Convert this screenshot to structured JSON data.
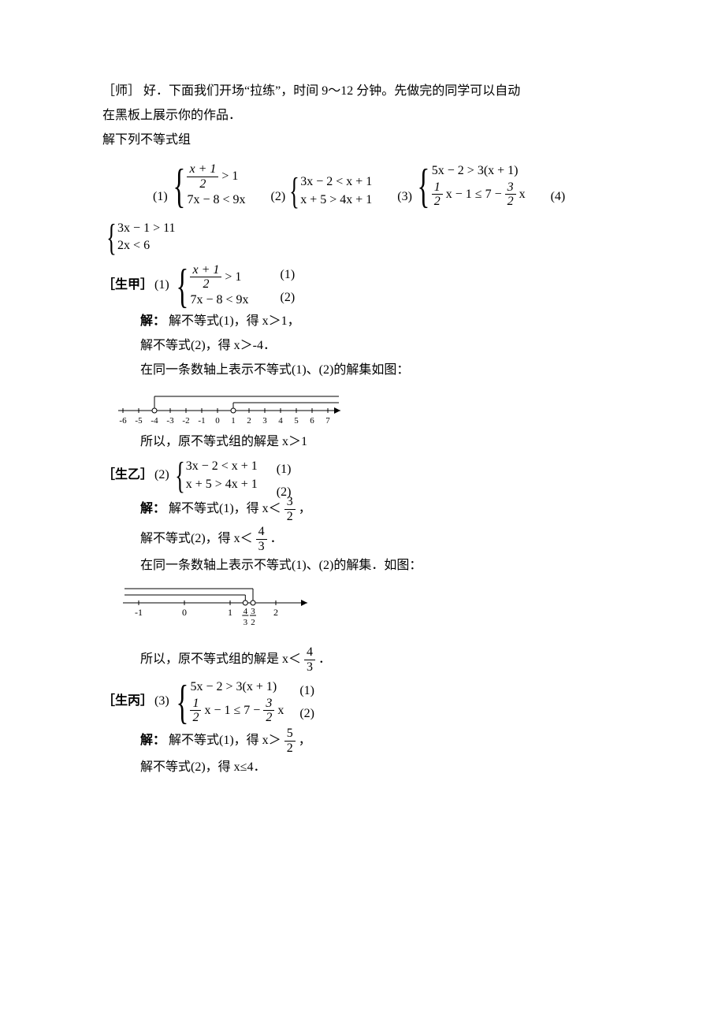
{
  "intro": {
    "teacher_label": "［师］",
    "line1a": "好．下面我们开场“拉练”，时间 9～12 分钟。先做完的同学可以自动",
    "line1b": "在黑板上展示你的作品．",
    "prompt": "解下列不等式组"
  },
  "problems": {
    "p1_label": "(1)",
    "p1_line1_lhs": "x + 1",
    "p1_line1_den": "2",
    "p1_line1_rest": "> 1",
    "p1_line2": "7x − 8 < 9x",
    "p2_label": "(2)",
    "p2_line1": "3x − 2 < x + 1",
    "p2_line2": "x + 5 > 4x + 1",
    "p3_label": "(3)",
    "p3_line1": "5x − 2 > 3(x + 1)",
    "p3_line2_a": "1",
    "p3_line2_a_den": "2",
    "p3_line2_mid": "x − 1 ≤ 7 −",
    "p3_line2_b": "3",
    "p3_line2_b_den": "2",
    "p3_line2_end": "x",
    "p4_label": "(4)",
    "p4_line1": "3x − 1 > 11",
    "p4_line2": "2x < 6"
  },
  "sA": {
    "label": "［生甲］",
    "num": "(1)",
    "sys_line1_num": "x + 1",
    "sys_line1_den": "2",
    "sys_line1_rest": "> 1",
    "sys_line2": "7x − 8 < 9x",
    "eq1": "(1)",
    "eq2": "(2)",
    "sol_label": "解：",
    "step1": "解不等式(1)，得 x＞1，",
    "step2": "解不等式(2)，得 x＞-4．",
    "step3": "在同一条数轴上表示不等式(1)、(2)的解集如图：",
    "conclusion": "所以，原不等式组的解是 x＞1",
    "axis": {
      "ticks": [
        -6,
        -5,
        -4,
        -3,
        -2,
        -1,
        0,
        1,
        2,
        3,
        4,
        5,
        6,
        7
      ],
      "open_points": [
        -4,
        1
      ],
      "rays": [
        {
          "from": -4,
          "style": "high"
        },
        {
          "from": 1,
          "style": "low"
        }
      ],
      "stroke": "#000000"
    }
  },
  "sB": {
    "label": "［生乙］",
    "num": "(2)",
    "sys_line1": "3x − 2 < x + 1",
    "sys_line2": "x + 5 > 4x + 1",
    "eq1": "(1)",
    "eq2": "(2)",
    "sol_label": "解：",
    "step1_pre": "解不等式(1)，得 x＜",
    "step1_frac_num": "3",
    "step1_frac_den": "2",
    "step1_post": "，",
    "step2_pre": "解不等式(2)，得 x＜",
    "step2_frac_num": "4",
    "step2_frac_den": "3",
    "step2_post": "．",
    "step3": "在同一条数轴上表示不等式(1)、(2)的解集．如图：",
    "conclusion_pre": "所以，原不等式组的解是 x＜",
    "conclusion_frac_num": "4",
    "conclusion_frac_den": "3",
    "conclusion_post": "．",
    "axis": {
      "ticks": [
        -1,
        0,
        1,
        2
      ],
      "frac_ticks": [
        {
          "pos": 1.333,
          "num": "4",
          "den": "3"
        },
        {
          "pos": 1.5,
          "num": "3",
          "den": "2"
        }
      ],
      "open_points": [
        1.333,
        1.5
      ],
      "rays_left": [
        {
          "to": 1.5,
          "style": "high"
        },
        {
          "to": 1.333,
          "style": "low"
        }
      ],
      "stroke": "#000000"
    }
  },
  "sC": {
    "label": "［生丙］",
    "num": "(3)",
    "sys_line1": "5x − 2 > 3(x + 1)",
    "sys_line2_a_num": "1",
    "sys_line2_a_den": "2",
    "sys_line2_mid": "x − 1 ≤ 7 −",
    "sys_line2_b_num": "3",
    "sys_line2_b_den": "2",
    "sys_line2_end": "x",
    "eq1": "(1)",
    "eq2": "(2)",
    "sol_label": "解：",
    "step1_pre": "解不等式(1)，得 x＞",
    "step1_frac_num": "5",
    "step1_frac_den": "2",
    "step1_post": "，",
    "step2": "解不等式(2)，得 x≤4．"
  }
}
